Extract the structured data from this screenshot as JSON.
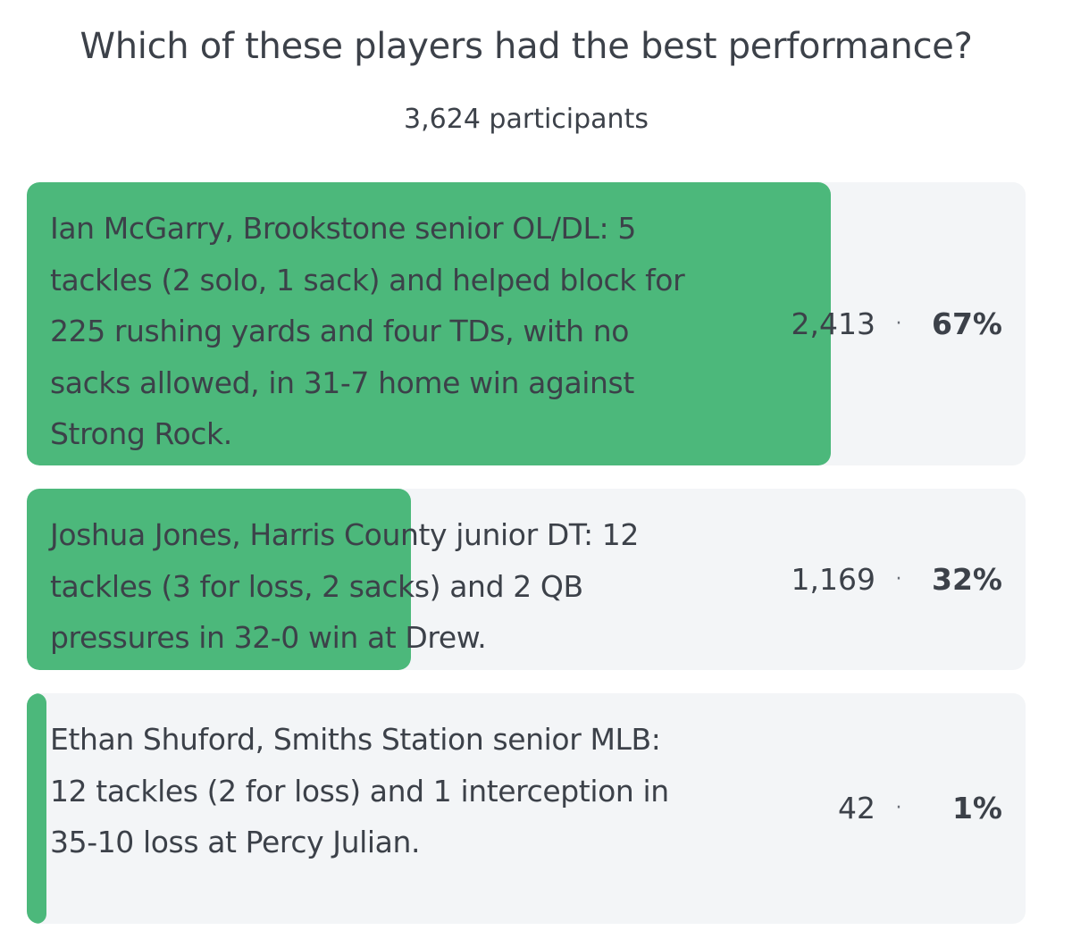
{
  "poll": {
    "question": "Which of these players had the best performance?",
    "participants": "3,624 participants",
    "bar_color": "#4cb87b",
    "track_color": "#f3f5f7",
    "separator": "·",
    "options": [
      {
        "text": "Ian McGarry, Brookstone senior OL/DL: 5 tackles (2 solo, 1 sack) and helped block for 225 rushing yards and four TDs, with no sacks allowed, in 31-7 home win against Strong Rock.",
        "votes": "2,413",
        "percent": "67%",
        "share": 0.67
      },
      {
        "text": "Joshua Jones, Harris County junior DT: 12 tackles (3 for loss, 2 sacks) and 2 QB pressures in 32-0 win at Drew.",
        "votes": "1,169",
        "percent": "32%",
        "share": 0.32
      },
      {
        "text": "Ethan Shuford, Smiths Station senior MLB: 12 tackles (2 for loss) and 1 interception in 35-10 loss at Percy Julian.",
        "votes": "42",
        "percent": "1%",
        "share": 0.01
      }
    ]
  }
}
